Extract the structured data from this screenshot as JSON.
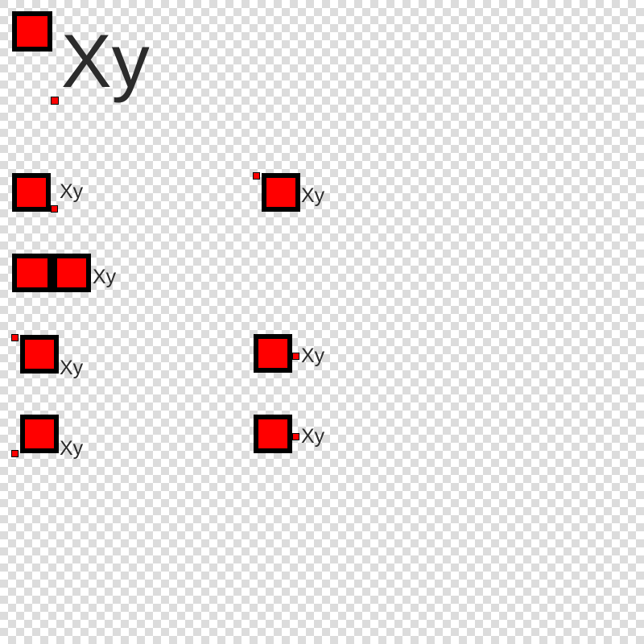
{
  "background": {
    "checker_light": "#ffffff",
    "checker_dark": "#dcdcdc",
    "cell_size": 10
  },
  "colors": {
    "box_fill": "#ff0000",
    "box_border": "#000000",
    "label_color": "#2b2b2b"
  },
  "specimens": [
    {
      "id": "hero",
      "label": "Xy",
      "marker_position": "below-baseline-left-of-text"
    },
    {
      "id": "marker-bottom-right",
      "label": "Xy",
      "marker_position": "bottom-right-of-box"
    },
    {
      "id": "marker-top-left",
      "label": "Xy",
      "marker_position": "top-left-outside-box"
    },
    {
      "id": "double-box",
      "label": "Xy",
      "marker_position": "none"
    },
    {
      "id": "marker-top-left-text-bottom",
      "label": "Xy",
      "marker_position": "top-left-outside-box"
    },
    {
      "id": "marker-mid-right",
      "label": "Xy",
      "marker_position": "middle-right-of-box"
    },
    {
      "id": "marker-bottom-left",
      "label": "Xy",
      "marker_position": "bottom-left-outside-box"
    },
    {
      "id": "marker-mid-right-2",
      "label": "Xy",
      "marker_position": "middle-right-of-box"
    }
  ]
}
